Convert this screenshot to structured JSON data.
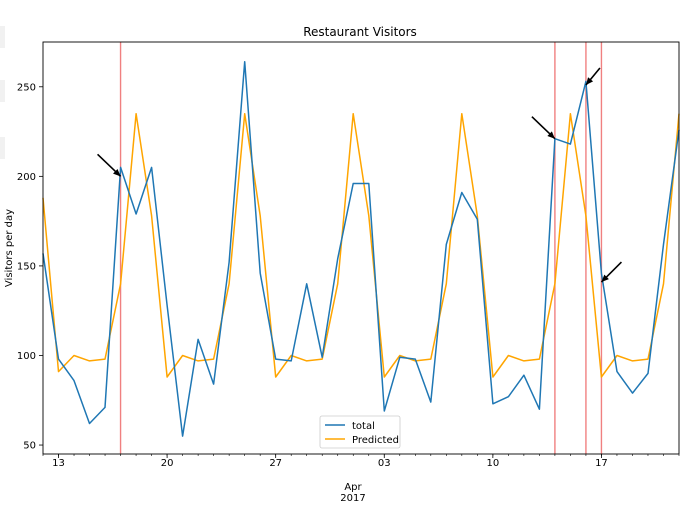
{
  "chart_data": {
    "type": "line",
    "title": "Restaurant Visitors",
    "xlabel": "",
    "ylabel": "Visitors per day",
    "x_start": "2017-03-12",
    "x": [
      "2017-03-12",
      "2017-03-13",
      "2017-03-14",
      "2017-03-15",
      "2017-03-16",
      "2017-03-17",
      "2017-03-18",
      "2017-03-19",
      "2017-03-20",
      "2017-03-21",
      "2017-03-22",
      "2017-03-23",
      "2017-03-24",
      "2017-03-25",
      "2017-03-26",
      "2017-03-27",
      "2017-03-28",
      "2017-03-29",
      "2017-03-30",
      "2017-03-31",
      "2017-04-01",
      "2017-04-02",
      "2017-04-03",
      "2017-04-04",
      "2017-04-05",
      "2017-04-06",
      "2017-04-07",
      "2017-04-08",
      "2017-04-09",
      "2017-04-10",
      "2017-04-11",
      "2017-04-12",
      "2017-04-13",
      "2017-04-14",
      "2017-04-15",
      "2017-04-16",
      "2017-04-17",
      "2017-04-18",
      "2017-04-19",
      "2017-04-20",
      "2017-04-21",
      "2017-04-22"
    ],
    "ylim": [
      45,
      275
    ],
    "yticks": [
      50,
      100,
      150,
      200,
      250
    ],
    "xticks": [
      {
        "date": "2017-03-13",
        "label": "13"
      },
      {
        "date": "2017-03-20",
        "label": "20"
      },
      {
        "date": "2017-03-27",
        "label": "27"
      },
      {
        "date": "2017-04-03",
        "label": "03"
      },
      {
        "date": "2017-04-10",
        "label": "10"
      },
      {
        "date": "2017-04-17",
        "label": "17"
      }
    ],
    "month_label": "Apr",
    "year_label": "2017",
    "series": [
      {
        "name": "total",
        "color": "#1f77b4",
        "values": [
          157,
          98,
          86,
          62,
          71,
          205,
          179,
          205,
          128,
          55,
          109,
          84,
          152,
          264,
          146,
          98,
          97,
          140,
          99,
          154,
          196,
          196,
          69,
          99,
          98,
          74,
          162,
          191,
          176,
          73,
          77,
          89,
          70,
          221,
          218,
          253,
          146,
          91,
          79,
          90,
          162,
          226
        ]
      },
      {
        "name": "Predicted",
        "color": "#ffa500",
        "values": [
          188,
          91,
          100,
          97,
          98,
          140,
          235,
          178,
          88,
          100,
          97,
          98,
          140,
          235,
          178,
          88,
          100,
          97,
          98,
          140,
          235,
          178,
          88,
          100,
          97,
          98,
          140,
          235,
          178,
          88,
          100,
          97,
          98,
          140,
          235,
          178,
          88,
          100,
          97,
          98,
          140,
          235
        ]
      }
    ],
    "vertical_lines": {
      "color": "#f08080",
      "dates": [
        "2017-03-17",
        "2017-04-14",
        "2017-04-16",
        "2017-04-17"
      ]
    },
    "arrows": [
      {
        "x": "2017-03-17",
        "y": 200
      },
      {
        "x": "2017-04-14",
        "y": 221
      },
      {
        "x": "2017-04-16",
        "y": 251
      },
      {
        "x": "2017-04-17",
        "y": 141
      }
    ],
    "legend_position": "bottom-center",
    "grid": false
  }
}
